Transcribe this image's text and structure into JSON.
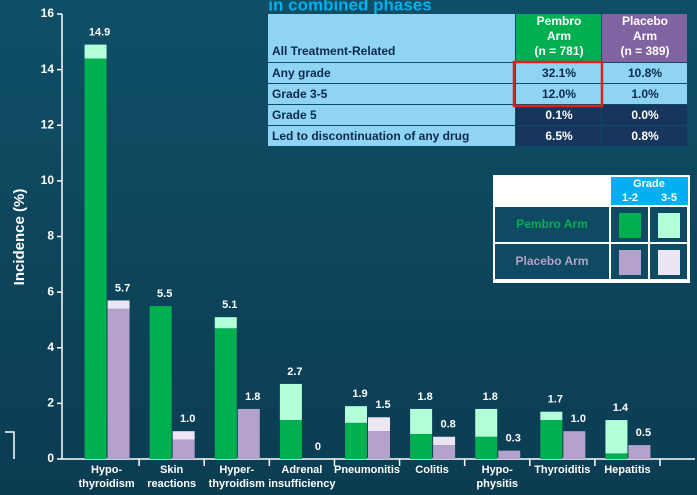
{
  "chart_data": {
    "type": "stacked-bar",
    "title": "in combined phases",
    "y_label": "Incidence (%)",
    "categories": [
      [
        "Hypo-",
        "thyroidism"
      ],
      [
        "Skin",
        "reactions"
      ],
      [
        "Hyper-",
        "thyroidism"
      ],
      [
        "Adrenal",
        "insufficiency"
      ],
      [
        "Pneumonitis"
      ],
      [
        "Colitis"
      ],
      [
        "Hypo-",
        "physitis"
      ],
      [
        "Thyroiditis"
      ],
      [
        "Hepatitis"
      ]
    ],
    "arms": [
      {
        "name": "Pembro Arm",
        "colors": [
          "#00b050",
          "#b3ffd9"
        ],
        "grade_1_2": [
          14.4,
          5.5,
          4.7,
          1.4,
          1.3,
          0.9,
          0.8,
          1.4,
          0.2
        ],
        "grade_3_5": [
          0.5,
          0,
          0.4,
          1.3,
          0.6,
          0.9,
          1.0,
          0.3,
          1.2
        ],
        "totals": [
          14.9,
          5.5,
          5.1,
          2.7,
          1.9,
          1.8,
          1.8,
          1.7,
          1.4
        ],
        "total_labels": [
          "14.9",
          "5.5",
          "5.1",
          "2.7",
          "1.9",
          "1.8",
          "1.8",
          "1.7",
          "1.4"
        ]
      },
      {
        "name": "Placebo Arm",
        "colors": [
          "#b4a2cc",
          "#ece6f2"
        ],
        "grade_1_2": [
          5.4,
          0.7,
          1.8,
          0,
          1.0,
          0.5,
          0.3,
          1.0,
          0.5
        ],
        "grade_3_5": [
          0.3,
          0.3,
          0,
          0,
          0.5,
          0.3,
          0,
          0,
          0
        ],
        "totals": [
          5.7,
          1.0,
          1.8,
          0,
          1.5,
          0.8,
          0.3,
          1.0,
          0.5
        ],
        "total_labels": [
          "5.7",
          "1.0",
          "1.8",
          "0",
          "1.5",
          "0.8",
          "0.3",
          "1.0",
          "0.5"
        ]
      }
    ],
    "legend": {
      "title": "Grade",
      "grades": [
        "1-2",
        "3-5"
      ]
    },
    "ylim": [
      0,
      16
    ],
    "yticks": [
      0,
      2,
      4,
      6,
      8,
      10,
      12,
      14,
      16
    ]
  },
  "table": {
    "header": [
      "All Treatment-Related",
      [
        "Pembro",
        "Arm",
        "(n = 781)"
      ],
      [
        "Placebo",
        "Arm",
        "(n = 389)"
      ]
    ],
    "rows": [
      [
        "Any grade",
        "32.1%",
        "10.8%"
      ],
      [
        "Grade 3-5",
        "12.0%",
        "1.0%"
      ],
      [
        "Grade 5",
        "0.1%",
        "0.0%"
      ],
      [
        "Led to discontinuation of any drug",
        "6.5%",
        "0.8%"
      ]
    ]
  }
}
